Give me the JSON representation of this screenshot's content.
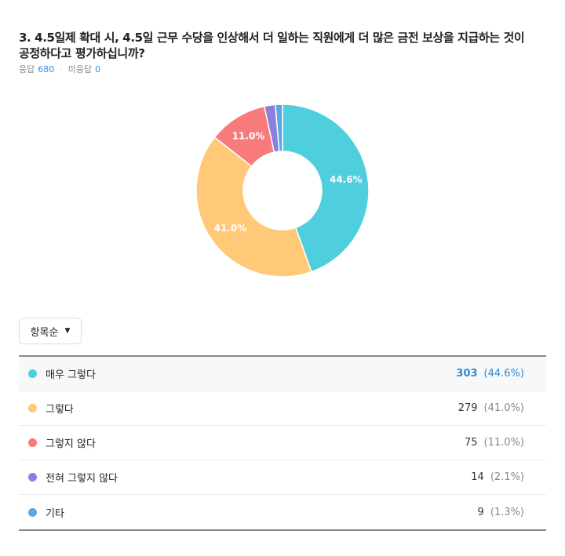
{
  "question": {
    "title": "3. 4.5일제 확대 시, 4.5일 근무 수당을 인상해서 더 일하는 직원에게 더 많은 금전 보상을 지급하는 것이 공정하다고 평가하십니까?",
    "responses_label": "응답",
    "responses_count": "680",
    "no_response_label": "미응답",
    "no_response_count": "0"
  },
  "sort_button": {
    "label": "항목순",
    "icon": "caret-down-icon"
  },
  "colors": {
    "매우 그렇다": "#4fcedd",
    "그렇다": "#ffc978",
    "그렇지 않다": "#f87b7b",
    "전혀 그렇지 않다": "#8b7fdf",
    "기타": "#5aa7e6"
  },
  "chart_data": {
    "type": "pie",
    "donut": true,
    "categories": [
      "매우 그렇다",
      "그렇다",
      "그렇지 않다",
      "전혀 그렇지 않다",
      "기타"
    ],
    "values": [
      303,
      279,
      75,
      14,
      9
    ],
    "percent_labels": [
      "44.6%",
      "41.0%",
      "11.0%",
      "2.1%",
      "1.3%"
    ],
    "slice_labels_shown": [
      "44.6%",
      "41.0%",
      "11.0%"
    ]
  },
  "table": {
    "rows": [
      {
        "label": "매우 그렇다",
        "count": "303",
        "pct": "(44.6%)"
      },
      {
        "label": "그렇다",
        "count": "279",
        "pct": "(41.0%)"
      },
      {
        "label": "그렇지 않다",
        "count": "75",
        "pct": "(11.0%)"
      },
      {
        "label": "전혀 그렇지 않다",
        "count": "14",
        "pct": "(2.1%)"
      },
      {
        "label": "기타",
        "count": "9",
        "pct": "(1.3%)"
      }
    ]
  }
}
